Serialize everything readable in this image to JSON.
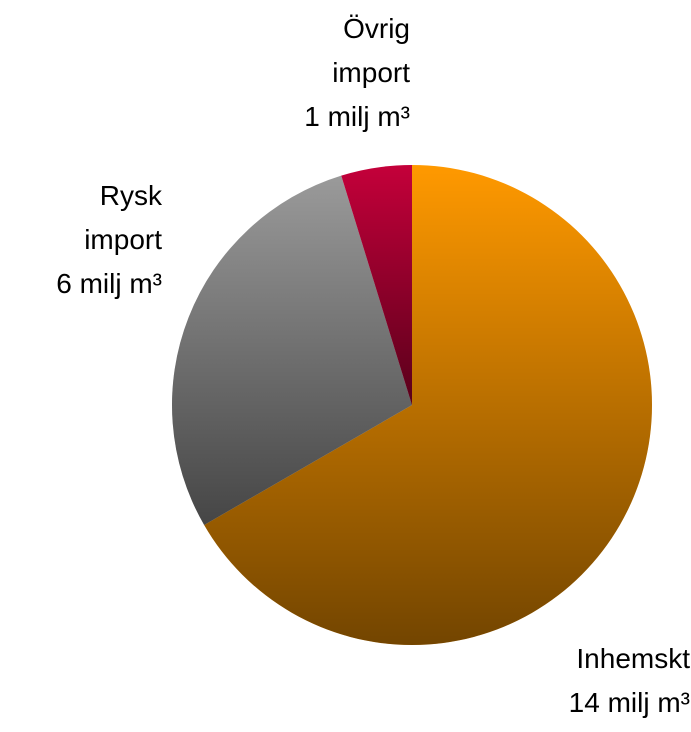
{
  "chart_data": {
    "type": "pie",
    "categories": [
      "Inhemskt",
      "Rysk import",
      "Övrig import"
    ],
    "values": [
      14,
      6,
      1
    ],
    "value_labels": [
      "14 milj m³",
      "6 milj m³",
      "1 milj m³"
    ],
    "colors": [
      "#ff9900",
      "#9a9a9a",
      "#c4003a"
    ]
  }
}
